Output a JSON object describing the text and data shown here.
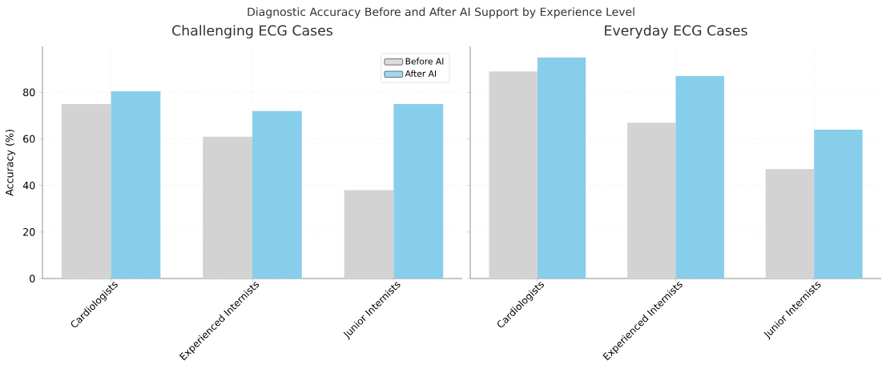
{
  "chart_data": [
    {
      "type": "bar",
      "title": "Challenging ECG Cases",
      "ylabel": "Accuracy (%)",
      "annotations": [
        "Diagnostic Accuracy Before and After AI Support by Experience Level"
      ],
      "categories": [
        "Cardiologists",
        "Experienced Internists",
        "Junior Internists"
      ],
      "series": [
        {
          "name": "Before AI",
          "color": "#d3d3d3",
          "values": [
            75,
            61,
            38
          ]
        },
        {
          "name": "After AI",
          "color": "#87ceeb",
          "values": [
            80.5,
            72,
            75
          ]
        }
      ],
      "ylim": [
        0,
        99.75
      ],
      "yticks": [
        0,
        20,
        40,
        60,
        80
      ],
      "grid": true,
      "legend": "top right"
    },
    {
      "type": "bar",
      "title": "Everyday ECG Cases",
      "categories": [
        "Cardiologists",
        "Experienced Internists",
        "Junior Internists"
      ],
      "series": [
        {
          "color": "#d3d3d3",
          "values": [
            89,
            67,
            47
          ]
        },
        {
          "color": "#87ceeb",
          "values": [
            95,
            87,
            64
          ]
        }
      ],
      "ylim": [
        0,
        99.75
      ],
      "yticks": [
        0,
        20,
        40,
        60,
        80
      ],
      "grid": true,
      "tick_labels": "x",
      "legend": false
    }
  ]
}
